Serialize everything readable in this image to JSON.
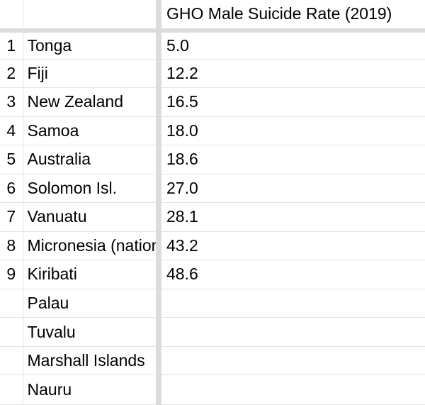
{
  "header": {
    "num": "",
    "country": "",
    "rate": "GHO Male Suicide Rate (2019)"
  },
  "rows": [
    {
      "num": "1",
      "country": "Tonga",
      "rate": "5.0"
    },
    {
      "num": "2",
      "country": "Fiji",
      "rate": "12.2"
    },
    {
      "num": "3",
      "country": "New Zealand",
      "rate": "16.5"
    },
    {
      "num": "4",
      "country": "Samoa",
      "rate": "18.0"
    },
    {
      "num": "5",
      "country": "Australia",
      "rate": "18.6"
    },
    {
      "num": "6",
      "country": "Solomon Isl.",
      "rate": "27.0"
    },
    {
      "num": "7",
      "country": "Vanuatu",
      "rate": "28.1"
    },
    {
      "num": "8",
      "country": "Micronesia (nation)",
      "rate": "43.2"
    },
    {
      "num": "9",
      "country": "Kiribati",
      "rate": "48.6"
    },
    {
      "num": "",
      "country": "Palau",
      "rate": ""
    },
    {
      "num": "",
      "country": "Tuvalu",
      "rate": ""
    },
    {
      "num": "",
      "country": "Marshall Islands",
      "rate": ""
    },
    {
      "num": "",
      "country": "Nauru",
      "rate": ""
    }
  ]
}
